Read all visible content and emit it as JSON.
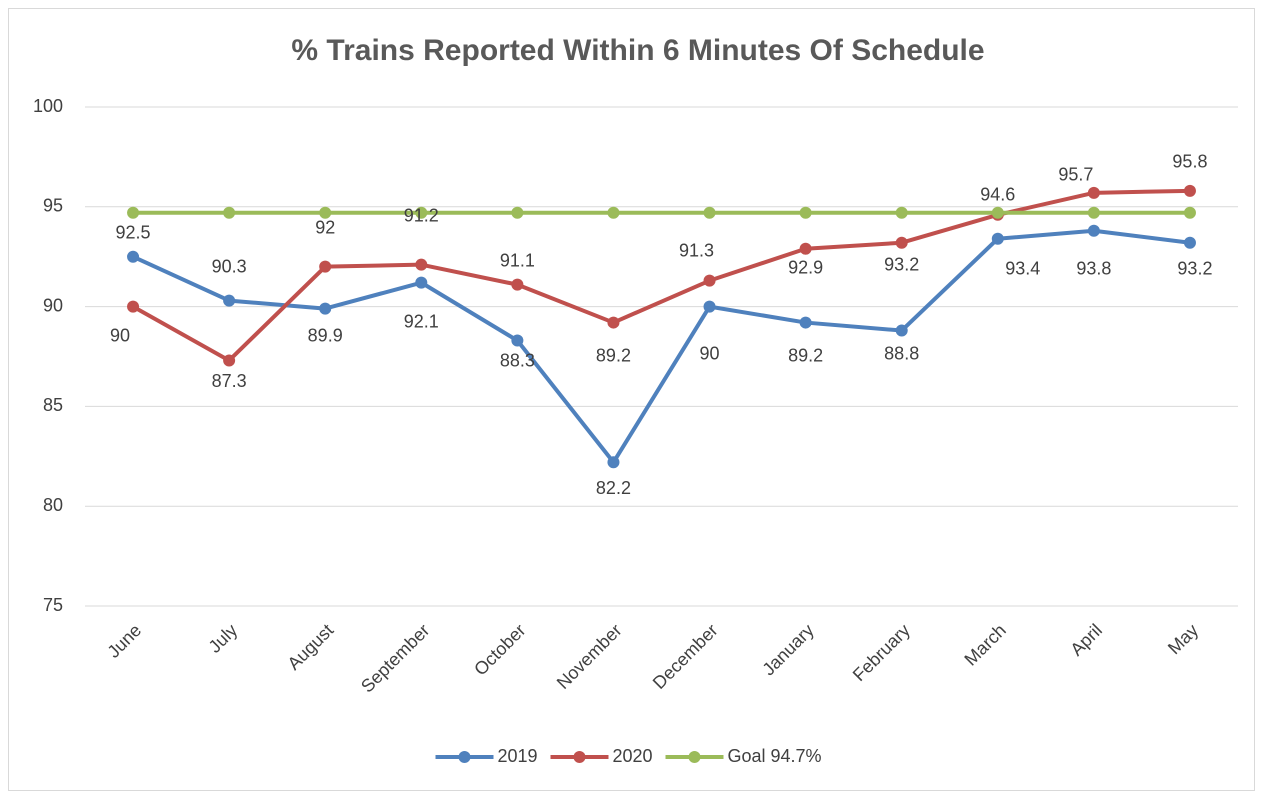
{
  "chart_data": {
    "type": "line",
    "title": "% Trains Reported Within 6 Minutes Of Schedule",
    "categories": [
      "June",
      "July",
      "August",
      "September",
      "October",
      "November",
      "December",
      "January",
      "February",
      "March",
      "April",
      "May"
    ],
    "series": [
      {
        "name": "2019",
        "color": "#4f81bd",
        "values": [
          92.5,
          90.3,
          89.9,
          91.2,
          88.3,
          82.2,
          90,
          89.2,
          88.8,
          93.4,
          93.8,
          93.2
        ],
        "data_labels": true
      },
      {
        "name": "2020",
        "color": "#c0504d",
        "values": [
          90,
          87.3,
          92,
          92.1,
          91.1,
          89.2,
          91.3,
          92.9,
          93.2,
          94.6,
          95.7,
          95.8
        ],
        "data_labels": true
      },
      {
        "name": "Goal 94.7%",
        "color": "#9bbb59",
        "values": [
          94.7,
          94.7,
          94.7,
          94.7,
          94.7,
          94.7,
          94.7,
          94.7,
          94.7,
          94.7,
          94.7,
          94.7
        ],
        "data_labels": false
      }
    ],
    "ylim": [
      75,
      100
    ],
    "yticks": [
      75,
      80,
      85,
      90,
      95,
      100
    ],
    "grid": true,
    "legend": "bottom"
  }
}
